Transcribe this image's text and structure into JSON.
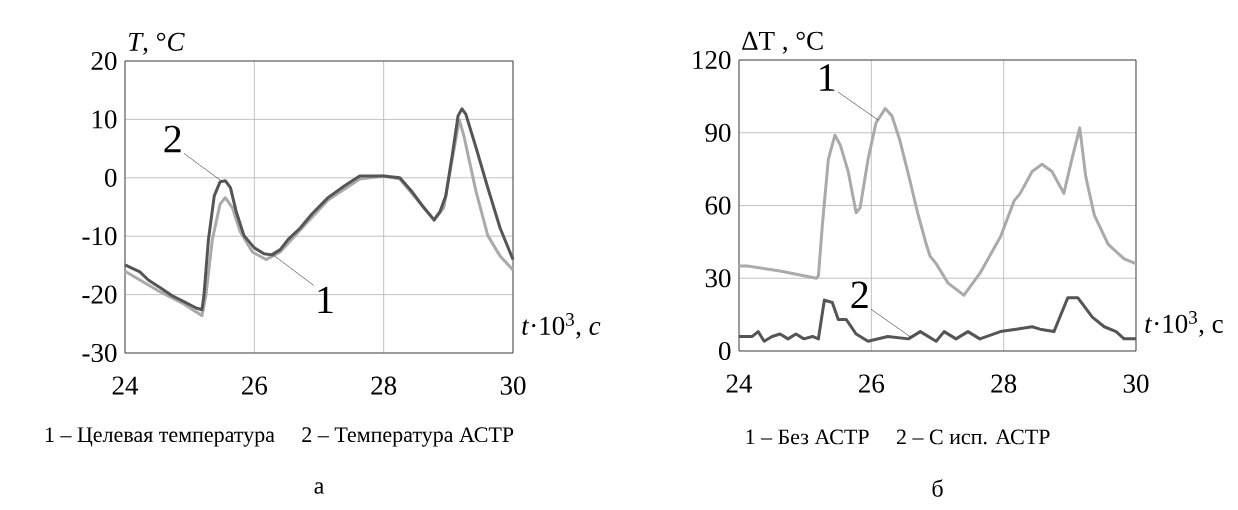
{
  "chart_data": [
    {
      "type": "line",
      "title": "а",
      "xlabel": "*t*·10$^{3}$, *c*",
      "ylabel": "*T*, °*C*",
      "annotations": [
        "1 – Целевая температура",
        "2 – Температура АСТР"
      ],
      "xlim": [
        24,
        30
      ],
      "ylim": [
        -30,
        20
      ],
      "xticks": [
        24,
        26,
        28,
        30
      ],
      "yticks": [
        -30,
        -20,
        -10,
        0,
        10,
        20
      ],
      "grid": true,
      "legend": false,
      "series": [
        {
          "name": "1",
          "color": "#aaaaaa",
          "x": [
            24,
            24.54,
            24.91,
            25.19,
            25.25,
            25.35,
            25.47,
            25.55,
            25.66,
            25.78,
            25.97,
            26.18,
            26.4,
            26.77,
            27.14,
            27.63,
            28.0,
            28.25,
            28.62,
            28.78,
            28.93,
            29.06,
            29.17,
            29.24,
            29.43,
            29.61,
            29.8,
            30
          ],
          "values": [
            -16,
            -19.5,
            -21.6,
            -23.6,
            -20.2,
            -10.6,
            -4.5,
            -3.4,
            -5.1,
            -9.2,
            -12.7,
            -14,
            -12.7,
            -8.2,
            -3.8,
            -0.2,
            0.3,
            -0.2,
            -5.1,
            -7.3,
            -5.1,
            3.2,
            9.9,
            7.2,
            -2.4,
            -9.9,
            -13.4,
            -15.8
          ]
        },
        {
          "name": "2",
          "color": "#555555",
          "x": [
            24,
            24.23,
            24.36,
            24.54,
            24.73,
            24.91,
            25.1,
            25.19,
            25.22,
            25.29,
            25.38,
            25.47,
            25.55,
            25.63,
            25.72,
            25.84,
            26.0,
            26.15,
            26.27,
            26.4,
            26.52,
            26.71,
            26.89,
            27.14,
            27.39,
            27.63,
            28.0,
            28.25,
            28.44,
            28.62,
            28.78,
            28.87,
            28.96,
            29.06,
            29.15,
            29.21,
            29.27,
            29.43,
            29.61,
            29.8,
            30
          ],
          "values": [
            -14.9,
            -16.1,
            -17.5,
            -18.8,
            -20.2,
            -21.2,
            -22.3,
            -22.6,
            -20.2,
            -10.6,
            -3.1,
            -0.7,
            -0.5,
            -1.7,
            -5.8,
            -9.9,
            -12,
            -13,
            -13.2,
            -12.3,
            -10.6,
            -8.6,
            -6.2,
            -3.4,
            -1.4,
            0.3,
            0.3,
            0,
            -2.4,
            -5.1,
            -7.2,
            -5.8,
            -3.1,
            3.8,
            10.6,
            11.8,
            10.9,
            5.1,
            -1.7,
            -8.6,
            -14
          ]
        }
      ]
    },
    {
      "type": "line",
      "title": "б",
      "xlabel": "*t*·10$^{3}$, c",
      "ylabel": "ΔT , °C",
      "annotations": [
        "1 – Без АСТР",
        "2 – С исп. АСТР"
      ],
      "xlim": [
        24,
        30
      ],
      "ylim": [
        0,
        120
      ],
      "xticks": [
        24,
        26,
        28,
        30
      ],
      "yticks": [
        0,
        30,
        60,
        90,
        120
      ],
      "grid": true,
      "legend": false,
      "series": [
        {
          "name": "1",
          "color": "#aaaaaa",
          "x": [
            24,
            24.14,
            24.62,
            25.17,
            25.2,
            25.26,
            25.35,
            25.45,
            25.53,
            25.65,
            25.77,
            25.83,
            25.95,
            26.07,
            26.21,
            26.31,
            26.43,
            26.55,
            26.7,
            26.83,
            26.89,
            26.98,
            27.16,
            27.4,
            27.64,
            27.95,
            28.16,
            28.25,
            28.43,
            28.58,
            28.73,
            28.91,
            29.03,
            29.15,
            29.24,
            29.37,
            29.58,
            29.82,
            30
          ],
          "values": [
            35,
            35,
            33,
            30,
            31,
            52,
            79,
            89,
            85,
            74,
            57,
            59,
            79,
            94,
            100,
            97,
            87,
            74,
            57,
            44,
            39,
            36,
            28,
            23,
            32,
            47,
            62,
            65,
            74,
            77,
            74,
            65,
            79,
            92,
            72,
            56,
            44,
            38,
            36
          ]
        },
        {
          "name": "2",
          "color": "#555555",
          "x": [
            24,
            24.2,
            24.29,
            24.38,
            24.5,
            24.62,
            24.74,
            24.86,
            24.98,
            25.11,
            25.2,
            25.29,
            25.41,
            25.5,
            25.62,
            25.77,
            25.95,
            26.25,
            26.56,
            26.74,
            26.98,
            27.1,
            27.28,
            27.46,
            27.64,
            27.95,
            28.19,
            28.43,
            28.55,
            28.76,
            28.85,
            28.97,
            29.12,
            29.34,
            29.52,
            29.7,
            29.82,
            30
          ],
          "values": [
            6,
            6,
            8,
            4,
            6,
            7,
            5,
            7,
            5,
            6,
            5,
            21,
            20,
            13,
            13,
            7,
            4,
            6,
            5,
            8,
            4,
            8,
            5,
            8,
            5,
            8,
            9,
            10,
            9,
            8,
            14,
            22,
            22,
            14,
            10,
            8,
            5,
            5
          ]
        }
      ]
    }
  ]
}
